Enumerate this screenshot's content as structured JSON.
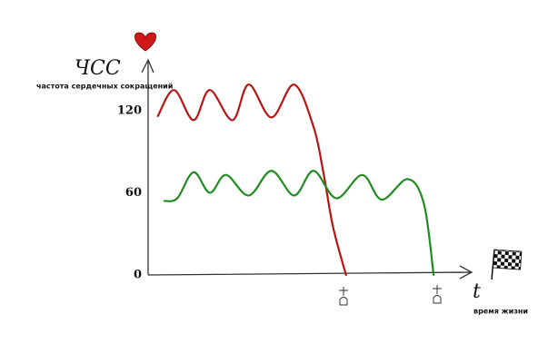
{
  "chart_data": {
    "type": "line",
    "title": "ЧСС",
    "subtitle": "частота сердечных сокращений",
    "x_label": "t",
    "x_caption": "время жизни",
    "xlim": [
      0,
      100
    ],
    "ylim": [
      0,
      155
    ],
    "yticks": [
      0,
      60,
      120
    ],
    "grid": false,
    "series": [
      {
        "color": "#b81414",
        "x": [
          3,
          8,
          14,
          19,
          26,
          31,
          38,
          45,
          51,
          54,
          57,
          61
        ],
        "values": [
          116,
          135,
          113,
          135,
          113,
          139,
          115,
          139,
          108,
          75,
          35,
          0
        ]
      },
      {
        "color": "#1f8c1f",
        "x": [
          5,
          9,
          14,
          19,
          24,
          31,
          38,
          45,
          51,
          58,
          66,
          72,
          80,
          85,
          88
        ],
        "values": [
          54,
          56,
          75,
          60,
          73,
          58,
          76,
          58,
          76,
          56,
          73,
          55,
          70,
          52,
          0
        ]
      }
    ]
  }
}
